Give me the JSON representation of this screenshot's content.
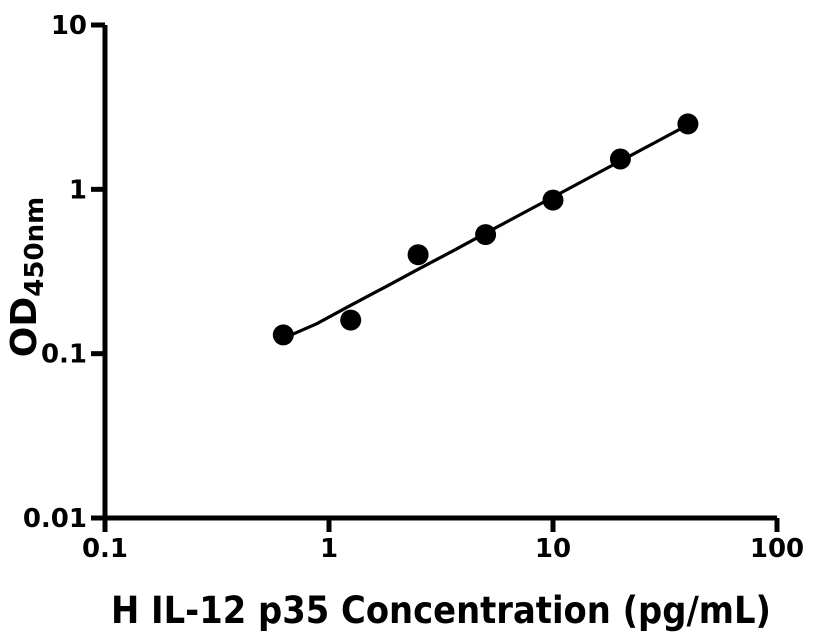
{
  "colors": {
    "ink": "#000000",
    "background": "#ffffff"
  },
  "chart_data": {
    "type": "scatter",
    "title": "",
    "xlabel": "H IL-12 p35 Concentration (pg/mL)",
    "ylabel": "OD450nm",
    "ylabel_main": "OD",
    "ylabel_sub": "450nm",
    "x_scale": "log",
    "y_scale": "log",
    "xlim": [
      0.1,
      100
    ],
    "ylim": [
      0.01,
      10
    ],
    "grid": false,
    "legend": "none",
    "x_ticks": [
      {
        "value": 0.1,
        "label": "0.1"
      },
      {
        "value": 1,
        "label": "1"
      },
      {
        "value": 10,
        "label": "10"
      },
      {
        "value": 100,
        "label": "100"
      }
    ],
    "y_ticks": [
      {
        "value": 0.01,
        "label": "0.01"
      },
      {
        "value": 0.1,
        "label": "0.1"
      },
      {
        "value": 1,
        "label": "1"
      },
      {
        "value": 10,
        "label": "10"
      }
    ],
    "series": [
      {
        "name": "standard-points",
        "type": "scatter",
        "marker": "filled-circle",
        "x": [
          0.625,
          1.25,
          2.5,
          5,
          10,
          20,
          40
        ],
        "y": [
          0.13,
          0.16,
          0.4,
          0.53,
          0.86,
          1.53,
          2.5
        ]
      },
      {
        "name": "fit-curve",
        "type": "line",
        "x": [
          0.625,
          0.88,
          1.25,
          1.77,
          2.5,
          3.54,
          5,
          7.07,
          10,
          14.14,
          20,
          28.28,
          40
        ],
        "y": [
          0.124,
          0.152,
          0.197,
          0.253,
          0.326,
          0.419,
          0.541,
          0.697,
          0.897,
          1.155,
          1.487,
          1.915,
          2.465
        ]
      }
    ]
  }
}
